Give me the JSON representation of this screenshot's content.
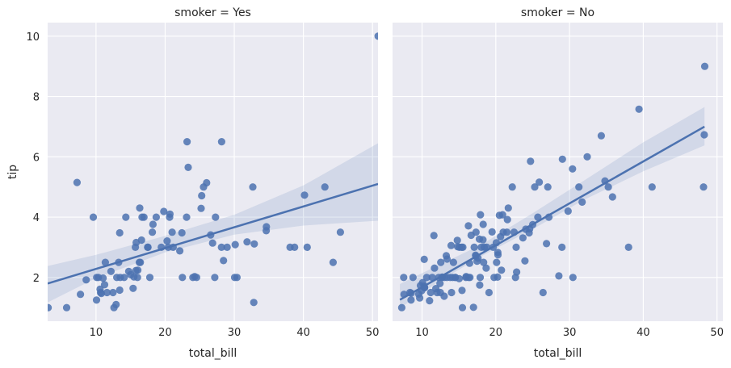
{
  "chart_data": [
    {
      "type": "scatter",
      "title": "smoker = Yes",
      "xlabel": "total_bill",
      "ylabel": "tip",
      "xlim": [
        3,
        50.8
      ],
      "ylim": [
        0.55,
        10.45
      ],
      "xticks": [
        10,
        20,
        30,
        40,
        50
      ],
      "yticks": [
        2,
        4,
        6,
        8,
        10
      ],
      "grid": true,
      "points": [
        [
          3.07,
          1.0
        ],
        [
          5.75,
          1.0
        ],
        [
          7.25,
          5.15
        ],
        [
          7.74,
          1.44
        ],
        [
          8.58,
          1.92
        ],
        [
          9.6,
          4.0
        ],
        [
          10.07,
          1.25
        ],
        [
          10.09,
          2.0
        ],
        [
          10.34,
          2.0
        ],
        [
          10.59,
          1.61
        ],
        [
          10.65,
          1.5
        ],
        [
          10.77,
          1.47
        ],
        [
          11.02,
          1.98
        ],
        [
          11.24,
          1.76
        ],
        [
          11.35,
          2.5
        ],
        [
          11.59,
          1.5
        ],
        [
          12.16,
          2.2
        ],
        [
          12.46,
          1.5
        ],
        [
          12.6,
          1.0
        ],
        [
          12.9,
          1.1
        ],
        [
          13.0,
          2.0
        ],
        [
          13.27,
          2.5
        ],
        [
          13.42,
          3.48
        ],
        [
          13.42,
          1.58
        ],
        [
          13.51,
          2.0
        ],
        [
          14.07,
          2.0
        ],
        [
          14.31,
          4.0
        ],
        [
          14.73,
          2.2
        ],
        [
          15.01,
          2.09
        ],
        [
          15.36,
          1.64
        ],
        [
          15.48,
          2.02
        ],
        [
          15.69,
          3.0
        ],
        [
          15.77,
          2.23
        ],
        [
          15.81,
          3.16
        ],
        [
          16.04,
          2.24
        ],
        [
          16.0,
          2.0
        ],
        [
          16.27,
          2.5
        ],
        [
          16.32,
          4.3
        ],
        [
          16.4,
          2.5
        ],
        [
          16.58,
          3.24
        ],
        [
          16.66,
          4.0
        ],
        [
          16.93,
          4.0
        ],
        [
          17.47,
          3.0
        ],
        [
          17.51,
          3.0
        ],
        [
          17.78,
          2.0
        ],
        [
          18.15,
          3.5
        ],
        [
          18.24,
          3.76
        ],
        [
          18.71,
          4.0
        ],
        [
          19.44,
          3.0
        ],
        [
          19.81,
          4.19
        ],
        [
          20.29,
          3.21
        ],
        [
          20.45,
          3.0
        ],
        [
          20.65,
          4.0
        ],
        [
          20.69,
          4.1
        ],
        [
          21.01,
          3.5
        ],
        [
          21.16,
          3.0
        ],
        [
          22.12,
          2.88
        ],
        [
          22.42,
          3.48
        ],
        [
          22.49,
          2.0
        ],
        [
          23.17,
          6.5
        ],
        [
          23.33,
          5.65
        ],
        [
          23.1,
          4.0
        ],
        [
          24.01,
          2.0
        ],
        [
          24.27,
          2.03
        ],
        [
          24.55,
          2.0
        ],
        [
          25.21,
          4.29
        ],
        [
          25.29,
          4.71
        ],
        [
          25.56,
          5.0
        ],
        [
          26.0,
          5.14
        ],
        [
          26.59,
          3.41
        ],
        [
          26.86,
          3.14
        ],
        [
          27.18,
          2.0
        ],
        [
          27.28,
          4.0
        ],
        [
          28.17,
          6.5
        ],
        [
          28.44,
          2.56
        ],
        [
          28.15,
          3.0
        ],
        [
          28.97,
          3.0
        ],
        [
          30.06,
          2.0
        ],
        [
          30.4,
          2.0
        ],
        [
          30.14,
          3.09
        ],
        [
          31.85,
          3.18
        ],
        [
          32.68,
          5.0
        ],
        [
          32.9,
          3.11
        ],
        [
          32.83,
          1.17
        ],
        [
          34.63,
          3.55
        ],
        [
          34.65,
          3.68
        ],
        [
          38.07,
          3.0
        ],
        [
          38.73,
          3.0
        ],
        [
          40.17,
          4.73
        ],
        [
          40.55,
          3.0
        ],
        [
          43.11,
          5.0
        ],
        [
          44.3,
          2.5
        ],
        [
          45.35,
          3.5
        ],
        [
          50.81,
          10.0
        ]
      ],
      "fit_line": {
        "x": [
          3.0,
          50.8
        ],
        "y": [
          1.8,
          5.1
        ]
      },
      "ci_band": {
        "x": [
          3.0,
          10.0,
          20.0,
          30.0,
          40.0,
          50.8
        ],
        "upper": [
          2.38,
          2.75,
          3.38,
          4.08,
          5.05,
          6.45
        ],
        "lower": [
          1.17,
          1.98,
          2.83,
          3.42,
          3.72,
          3.88
        ]
      }
    },
    {
      "type": "scatter",
      "title": "smoker = No",
      "xlabel": "total_bill",
      "ylabel": "",
      "xlim": [
        6,
        50.8
      ],
      "ylim": [
        0.55,
        10.45
      ],
      "xticks": [
        10,
        20,
        30,
        40,
        50
      ],
      "yticks": [
        2,
        4,
        6,
        8,
        10
      ],
      "grid": true,
      "points": [
        [
          7.25,
          1.0
        ],
        [
          7.51,
          2.0
        ],
        [
          7.56,
          1.44
        ],
        [
          8.35,
          1.5
        ],
        [
          8.51,
          1.25
        ],
        [
          8.52,
          1.48
        ],
        [
          8.77,
          2.0
        ],
        [
          9.55,
          1.45
        ],
        [
          9.68,
          1.32
        ],
        [
          9.78,
          1.73
        ],
        [
          9.94,
          1.56
        ],
        [
          10.07,
          1.83
        ],
        [
          10.27,
          1.71
        ],
        [
          10.29,
          2.6
        ],
        [
          10.33,
          1.67
        ],
        [
          10.34,
          1.66
        ],
        [
          10.63,
          2.0
        ],
        [
          11.17,
          1.5
        ],
        [
          11.38,
          2.0
        ],
        [
          11.61,
          3.39
        ],
        [
          11.69,
          2.31
        ],
        [
          11.87,
          1.63
        ],
        [
          12.03,
          1.5
        ],
        [
          12.26,
          2.0
        ],
        [
          12.43,
          1.8
        ],
        [
          12.54,
          2.5
        ],
        [
          12.69,
          2.0
        ],
        [
          12.74,
          2.01
        ],
        [
          13.03,
          2.0
        ],
        [
          13.37,
          2.0
        ],
        [
          13.39,
          2.61
        ],
        [
          13.81,
          2.0
        ],
        [
          13.94,
          3.06
        ],
        [
          14.15,
          2.0
        ],
        [
          14.26,
          2.5
        ],
        [
          14.48,
          2.0
        ],
        [
          14.52,
          2.0
        ],
        [
          14.78,
          3.23
        ],
        [
          14.83,
          3.02
        ],
        [
          15.04,
          1.96
        ],
        [
          15.06,
          3.0
        ],
        [
          15.38,
          3.0
        ],
        [
          15.42,
          1.57
        ],
        [
          15.53,
          3.0
        ],
        [
          15.95,
          2.0
        ],
        [
          15.98,
          2.03
        ],
        [
          16.29,
          3.71
        ],
        [
          16.31,
          2.0
        ],
        [
          16.45,
          2.47
        ],
        [
          16.49,
          2.0
        ],
        [
          16.97,
          1.01
        ],
        [
          17.07,
          3.0
        ],
        [
          17.26,
          2.74
        ],
        [
          17.29,
          2.71
        ],
        [
          17.31,
          3.5
        ],
        [
          17.46,
          2.54
        ],
        [
          17.59,
          2.64
        ],
        [
          17.78,
          3.27
        ],
        [
          17.82,
          1.75
        ],
        [
          17.92,
          4.08
        ],
        [
          18.04,
          3.0
        ],
        [
          18.26,
          3.25
        ],
        [
          18.29,
          3.76
        ],
        [
          18.35,
          2.5
        ],
        [
          18.43,
          3.0
        ],
        [
          18.69,
          2.31
        ],
        [
          18.78,
          3.0
        ],
        [
          19.08,
          1.5
        ],
        [
          19.49,
          3.51
        ],
        [
          19.77,
          2.0
        ],
        [
          20.08,
          3.15
        ],
        [
          20.23,
          2.01
        ],
        [
          20.27,
          2.83
        ],
        [
          20.29,
          2.75
        ],
        [
          20.49,
          4.06
        ],
        [
          20.65,
          3.35
        ],
        [
          20.76,
          2.24
        ],
        [
          20.92,
          4.08
        ],
        [
          21.01,
          3.5
        ],
        [
          21.58,
          3.92
        ],
        [
          21.7,
          4.3
        ],
        [
          22.23,
          5.0
        ],
        [
          22.67,
          2.0
        ],
        [
          22.76,
          3.0
        ],
        [
          22.82,
          2.18
        ],
        [
          23.68,
          3.31
        ],
        [
          23.95,
          2.55
        ],
        [
          24.06,
          3.6
        ],
        [
          24.52,
          3.48
        ],
        [
          24.59,
          3.61
        ],
        [
          24.71,
          5.85
        ],
        [
          25.0,
          3.75
        ],
        [
          25.28,
          5.0
        ],
        [
          25.71,
          4.0
        ],
        [
          25.89,
          5.16
        ],
        [
          26.41,
          1.5
        ],
        [
          26.88,
          3.12
        ],
        [
          27.2,
          4.0
        ],
        [
          27.05,
          5.0
        ],
        [
          28.55,
          2.05
        ],
        [
          28.97,
          3.0
        ],
        [
          29.03,
          5.92
        ],
        [
          29.8,
          4.2
        ],
        [
          30.46,
          2.0
        ],
        [
          30.4,
          5.6
        ],
        [
          31.27,
          5.0
        ],
        [
          31.71,
          4.5
        ],
        [
          32.4,
          6.0
        ],
        [
          34.3,
          6.7
        ],
        [
          34.81,
          5.2
        ],
        [
          35.26,
          5.0
        ],
        [
          35.83,
          4.67
        ],
        [
          38.01,
          3.0
        ],
        [
          39.42,
          7.58
        ],
        [
          41.19,
          5.0
        ],
        [
          48.17,
          5.0
        ],
        [
          48.27,
          6.73
        ],
        [
          48.33,
          9.0
        ],
        [
          15.48,
          1.0
        ],
        [
          13.0,
          1.38
        ],
        [
          11.02,
          1.23
        ],
        [
          12.48,
          1.5
        ],
        [
          16.66,
          3.4
        ],
        [
          17.89,
          2.0
        ],
        [
          19.65,
          3.0
        ],
        [
          20.11,
          2.5
        ],
        [
          21.5,
          3.5
        ],
        [
          22.49,
          3.5
        ],
        [
          14.0,
          1.5
        ],
        [
          13.28,
          2.72
        ]
      ],
      "fit_line": {
        "x": [
          7.0,
          48.3
        ],
        "y": [
          1.26,
          7.0
        ]
      },
      "ci_band": {
        "x": [
          7.0,
          12.0,
          18.0,
          25.0,
          32.0,
          40.0,
          48.3
        ],
        "upper": [
          1.78,
          2.38,
          3.08,
          4.13,
          5.22,
          6.48,
          7.65
        ],
        "lower": [
          0.98,
          1.82,
          2.7,
          3.6,
          4.58,
          5.52,
          6.38
        ]
      }
    }
  ]
}
